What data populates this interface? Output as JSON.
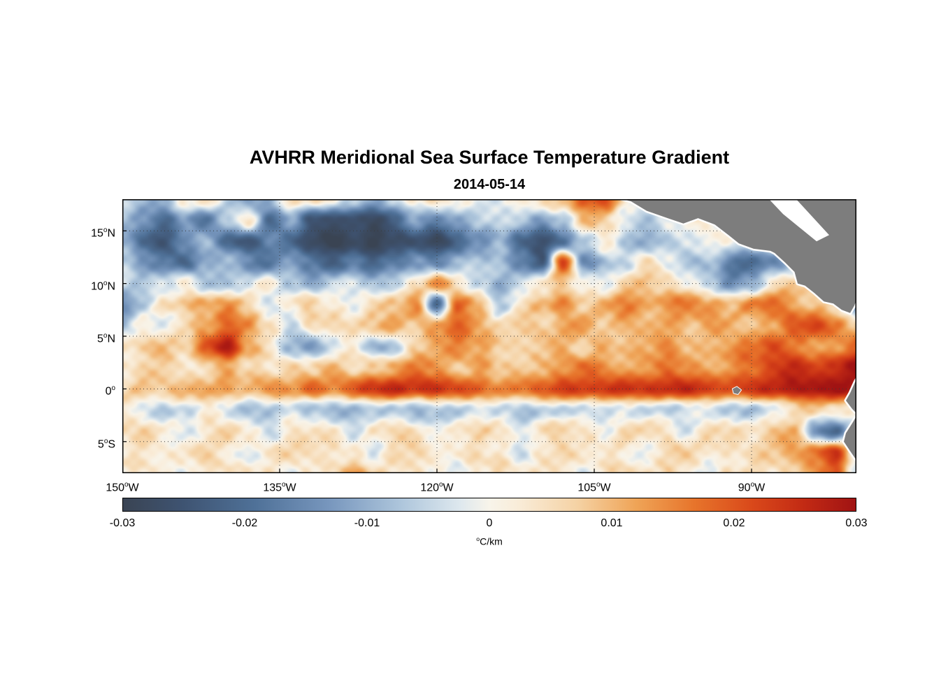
{
  "figure": {
    "background": "#ffffff",
    "axis_color": "#000000"
  },
  "chart_data": {
    "type": "heatmap",
    "title": "AVHRR Meridional Sea Surface Temperature Gradient",
    "subtitle": "2014-05-14",
    "xlabel": "",
    "ylabel": "",
    "lon_range": [
      -150,
      -80
    ],
    "lat_range": [
      -8,
      18
    ],
    "clim": [
      -0.03,
      0.03
    ],
    "x_ticks": [
      {
        "value": -150,
        "num": "150",
        "sup": "o",
        "suffix": "W"
      },
      {
        "value": -135,
        "num": "135",
        "sup": "o",
        "suffix": "W"
      },
      {
        "value": -120,
        "num": "120",
        "sup": "o",
        "suffix": "W"
      },
      {
        "value": -105,
        "num": "105",
        "sup": "o",
        "suffix": "W"
      },
      {
        "value": -90,
        "num": "90",
        "sup": "o",
        "suffix": "W"
      }
    ],
    "y_ticks": [
      {
        "value": 15,
        "num": "15",
        "sup": "o",
        "suffix": "N"
      },
      {
        "value": 10,
        "num": "10",
        "sup": "o",
        "suffix": "N"
      },
      {
        "value": 5,
        "num": "5",
        "sup": "o",
        "suffix": "N"
      },
      {
        "value": 0,
        "num": "0",
        "sup": "o",
        "suffix": ""
      },
      {
        "value": -5,
        "num": "5",
        "sup": "o",
        "suffix": "S"
      }
    ],
    "gridlines": {
      "show": true,
      "style": "dotted",
      "color": "#3a3a3a"
    },
    "colorbar_ticks": [
      "-0.03",
      "-0.02",
      "-0.01",
      "0",
      "0.01",
      "0.02",
      "0.03"
    ],
    "colorbar_unit": {
      "sup": "o",
      "text": "C/km"
    },
    "colormap": [
      {
        "t": 0.0,
        "color": "#3a4453"
      },
      {
        "t": 0.08,
        "color": "#3e5371"
      },
      {
        "t": 0.18,
        "color": "#4f7198"
      },
      {
        "t": 0.28,
        "color": "#7796bd"
      },
      {
        "t": 0.38,
        "color": "#aec6dc"
      },
      {
        "t": 0.46,
        "color": "#dee8ee"
      },
      {
        "t": 0.5,
        "color": "#f8f4ea"
      },
      {
        "t": 0.54,
        "color": "#f9ecd8"
      },
      {
        "t": 0.62,
        "color": "#f5d2a4"
      },
      {
        "t": 0.7,
        "color": "#efa457"
      },
      {
        "t": 0.78,
        "color": "#e7742b"
      },
      {
        "t": 0.86,
        "color": "#d9481a"
      },
      {
        "t": 0.93,
        "color": "#c22a14"
      },
      {
        "t": 1.0,
        "color": "#a01313"
      }
    ],
    "field": {
      "lon_start": -150,
      "lon_step": 2,
      "lat_start": 18,
      "lat_step": -2,
      "values": [
        [
          -0.005,
          -0.01,
          -0.008,
          0.002,
          0.004,
          -0.006,
          -0.012,
          -0.008,
          0.003,
          0.005,
          0.002,
          -0.004,
          -0.01,
          -0.006,
          0.004,
          0.006,
          0.003,
          -0.003,
          -0.005,
          0.004,
          0.006,
          0.01,
          0.018,
          0.022,
          0.004,
          0,
          0,
          0,
          0,
          0,
          0,
          0,
          0,
          0,
          0,
          0
        ],
        [
          -0.008,
          -0.015,
          -0.02,
          -0.012,
          -0.018,
          -0.008,
          0.004,
          -0.02,
          -0.01,
          -0.025,
          -0.028,
          -0.025,
          -0.028,
          -0.022,
          -0.012,
          -0.018,
          -0.01,
          -0.006,
          -0.004,
          -0.008,
          -0.012,
          -0.006,
          0.01,
          0.006,
          -0.004,
          -0.006,
          -0.002,
          0,
          0,
          0,
          0,
          0,
          0,
          0,
          0,
          0
        ],
        [
          -0.01,
          -0.02,
          -0.025,
          -0.015,
          -0.01,
          -0.02,
          -0.025,
          -0.015,
          -0.022,
          -0.028,
          -0.03,
          -0.028,
          -0.03,
          -0.028,
          -0.025,
          -0.028,
          -0.022,
          -0.015,
          -0.01,
          -0.02,
          -0.026,
          -0.02,
          -0.008,
          0.004,
          -0.006,
          -0.012,
          -0.008,
          -0.004,
          0.002,
          0,
          0,
          0,
          0,
          0,
          0,
          0
        ],
        [
          -0.006,
          -0.012,
          -0.018,
          -0.022,
          -0.012,
          -0.006,
          -0.015,
          -0.02,
          -0.012,
          -0.018,
          -0.022,
          -0.018,
          -0.022,
          -0.018,
          -0.012,
          -0.015,
          -0.01,
          -0.006,
          -0.008,
          -0.015,
          -0.025,
          0.022,
          -0.015,
          -0.008,
          -0.004,
          0.004,
          -0.002,
          -0.008,
          -0.006,
          -0.018,
          -0.022,
          -0.015,
          -0.006,
          0,
          0,
          0
        ],
        [
          -0.004,
          -0.008,
          -0.004,
          0.002,
          -0.006,
          -0.01,
          -0.004,
          0.003,
          -0.006,
          -0.01,
          -0.006,
          -0.002,
          -0.008,
          -0.004,
          0.003,
          0.015,
          0.004,
          -0.004,
          -0.01,
          -0.006,
          0.004,
          0.008,
          0.002,
          -0.004,
          0.006,
          0.01,
          0.006,
          0.002,
          -0.008,
          -0.015,
          -0.01,
          0.004,
          0.008,
          0.006,
          0,
          0
        ],
        [
          -0.014,
          -0.006,
          0.004,
          0.008,
          0.012,
          0.015,
          0.006,
          -0.006,
          0.004,
          0.008,
          0.003,
          -0.004,
          0.006,
          0.01,
          0.015,
          -0.02,
          0.018,
          0.012,
          -0.006,
          0.004,
          0.01,
          0.014,
          0.008,
          0.012,
          0.016,
          0.01,
          0.014,
          0.018,
          0.012,
          0.008,
          0.015,
          0.02,
          0.012,
          0.008,
          0.004,
          -0.015
        ],
        [
          -0.008,
          0.004,
          -0.004,
          0.006,
          0.01,
          0.02,
          0.015,
          0.004,
          -0.006,
          0.004,
          0.008,
          0.004,
          0.008,
          0.012,
          0.008,
          0.015,
          0.018,
          0.012,
          0.006,
          0.01,
          0.006,
          0.01,
          0.014,
          0.008,
          0.012,
          0.008,
          0.012,
          0.008,
          0.014,
          0.01,
          0.006,
          0.012,
          0.02,
          0.024,
          0.015,
          0.008
        ],
        [
          0.004,
          0.006,
          0.01,
          0.006,
          0.022,
          0.028,
          0.012,
          0.004,
          -0.008,
          -0.012,
          -0.006,
          0.004,
          -0.01,
          -0.006,
          0.006,
          0.01,
          0.016,
          0.012,
          0.008,
          0.004,
          0.008,
          0.012,
          0.006,
          0.01,
          0.008,
          0.012,
          0.016,
          0.01,
          0.008,
          0.014,
          0.018,
          0.022,
          0.016,
          0.01,
          0.014,
          0.018
        ],
        [
          0.003,
          0.005,
          0.008,
          0.004,
          0.006,
          0.01,
          0.006,
          0.004,
          0.008,
          0.006,
          0.01,
          0.006,
          0.008,
          0.012,
          0.016,
          0.012,
          0.008,
          0.012,
          0.008,
          0.006,
          0.01,
          0.014,
          0.018,
          0.014,
          0.01,
          0.014,
          0.018,
          0.014,
          0.01,
          0.014,
          0.018,
          0.022,
          0.026,
          0.022,
          0.026,
          0.03
        ],
        [
          0.006,
          0.01,
          0.008,
          0.012,
          0.01,
          0.014,
          0.01,
          0.015,
          0.012,
          0.018,
          0.015,
          0.02,
          0.024,
          0.026,
          0.024,
          0.026,
          0.022,
          0.018,
          0.015,
          0.018,
          0.02,
          0.024,
          0.022,
          0.025,
          0.026,
          0.024,
          0.025,
          0.026,
          0.024,
          0.02,
          0.024,
          0.026,
          0.028,
          0.03,
          0.03,
          0.028
        ],
        [
          0.002,
          -0.004,
          -0.006,
          -0.004,
          0.002,
          -0.004,
          -0.008,
          -0.006,
          -0.004,
          -0.008,
          -0.01,
          -0.008,
          -0.006,
          -0.008,
          -0.01,
          -0.008,
          -0.006,
          -0.004,
          -0.006,
          -0.008,
          -0.006,
          -0.004,
          -0.006,
          -0.004,
          -0.002,
          -0.004,
          -0.006,
          -0.004,
          -0.002,
          -0.006,
          -0.008,
          -0.004,
          0.004,
          0.008,
          0.004,
          0
        ],
        [
          0.004,
          0.006,
          0.003,
          -0.003,
          0.004,
          0.006,
          0.003,
          -0.004,
          0.004,
          0.006,
          0.003,
          -0.003,
          0.005,
          0.007,
          0.004,
          -0.003,
          0.005,
          0.007,
          0.004,
          -0.004,
          0.005,
          0.008,
          0.004,
          -0.003,
          0.006,
          0.008,
          0.004,
          -0.004,
          0.006,
          0.008,
          0.005,
          0.008,
          0.012,
          -0.015,
          -0.02,
          0
        ],
        [
          0.003,
          0.005,
          0.002,
          0.004,
          0.006,
          0.003,
          -0.003,
          0.004,
          0.006,
          0.003,
          0.005,
          0.002,
          -0.004,
          0.005,
          0.007,
          0.004,
          0.002,
          0.005,
          0.003,
          -0.003,
          0.004,
          0.006,
          0.003,
          0.005,
          0.002,
          -0.003,
          0.005,
          0.007,
          0.004,
          0.002,
          0.005,
          0.008,
          0.012,
          0.018,
          0.024,
          0
        ],
        [
          0.002,
          0.004,
          0.002,
          -0.003,
          0.003,
          0.005,
          0.002,
          0.004,
          -0.003,
          0.003,
          0.005,
          0.012,
          0.008,
          0.003,
          0.005,
          0.002,
          -0.003,
          0.004,
          0.006,
          0.003,
          0.005,
          0.002,
          -0.003,
          0.004,
          0.006,
          0.003,
          0.005,
          0.002,
          -0.003,
          0.004,
          0.006,
          0.003,
          0.008,
          0.014,
          0.02,
          0
        ]
      ]
    }
  },
  "map": {
    "land_color": "#7d7d7d",
    "coast_halo": "#ffffff",
    "polygons": {
      "central_america": [
        [
          -104.5,
          19.5
        ],
        [
          -103.0,
          18.2
        ],
        [
          -101.5,
          17.8
        ],
        [
          -100.0,
          16.9
        ],
        [
          -98.0,
          16.2
        ],
        [
          -96.5,
          15.7
        ],
        [
          -95.1,
          16.2
        ],
        [
          -93.5,
          15.6
        ],
        [
          -92.2,
          14.6
        ],
        [
          -91.2,
          13.8
        ],
        [
          -89.8,
          13.3
        ],
        [
          -88.2,
          13.1
        ],
        [
          -87.8,
          12.9
        ],
        [
          -86.8,
          12.0
        ],
        [
          -85.9,
          11.1
        ],
        [
          -85.6,
          10.0
        ],
        [
          -84.9,
          9.8
        ],
        [
          -84.0,
          9.1
        ],
        [
          -83.1,
          8.3
        ],
        [
          -82.2,
          8.1
        ],
        [
          -81.4,
          7.5
        ],
        [
          -80.6,
          7.2
        ],
        [
          -80.2,
          7.9
        ],
        [
          -79.9,
          8.7
        ],
        [
          -79.5,
          9.1
        ],
        [
          -75.0,
          9.0
        ],
        [
          -75.0,
          25.0
        ],
        [
          -104.5,
          25.0
        ]
      ],
      "south_america": [
        [
          -79.0,
          2.5
        ],
        [
          -80.1,
          0.7
        ],
        [
          -80.6,
          -0.4
        ],
        [
          -81.0,
          -1.1
        ],
        [
          -80.4,
          -1.9
        ],
        [
          -79.9,
          -2.4
        ],
        [
          -80.3,
          -3.1
        ],
        [
          -81.0,
          -4.2
        ],
        [
          -81.2,
          -5.0
        ],
        [
          -80.6,
          -5.9
        ],
        [
          -79.9,
          -6.9
        ],
        [
          -79.2,
          -7.9
        ],
        [
          -78.5,
          -9.5
        ],
        [
          -75.0,
          -9.5
        ],
        [
          -75.0,
          2.5
        ]
      ],
      "galapagos": [
        [
          -91.8,
          0.0
        ],
        [
          -91.4,
          0.2
        ],
        [
          -91.0,
          -0.1
        ],
        [
          -91.3,
          -0.5
        ],
        [
          -91.7,
          -0.4
        ]
      ]
    },
    "white_patches": {
      "caribbean_gap": [
        [
          -88.8,
          18.5
        ],
        [
          -86.2,
          18.5
        ],
        [
          -82.6,
          14.6
        ],
        [
          -83.8,
          14.0
        ],
        [
          -87.0,
          16.6
        ]
      ]
    }
  }
}
